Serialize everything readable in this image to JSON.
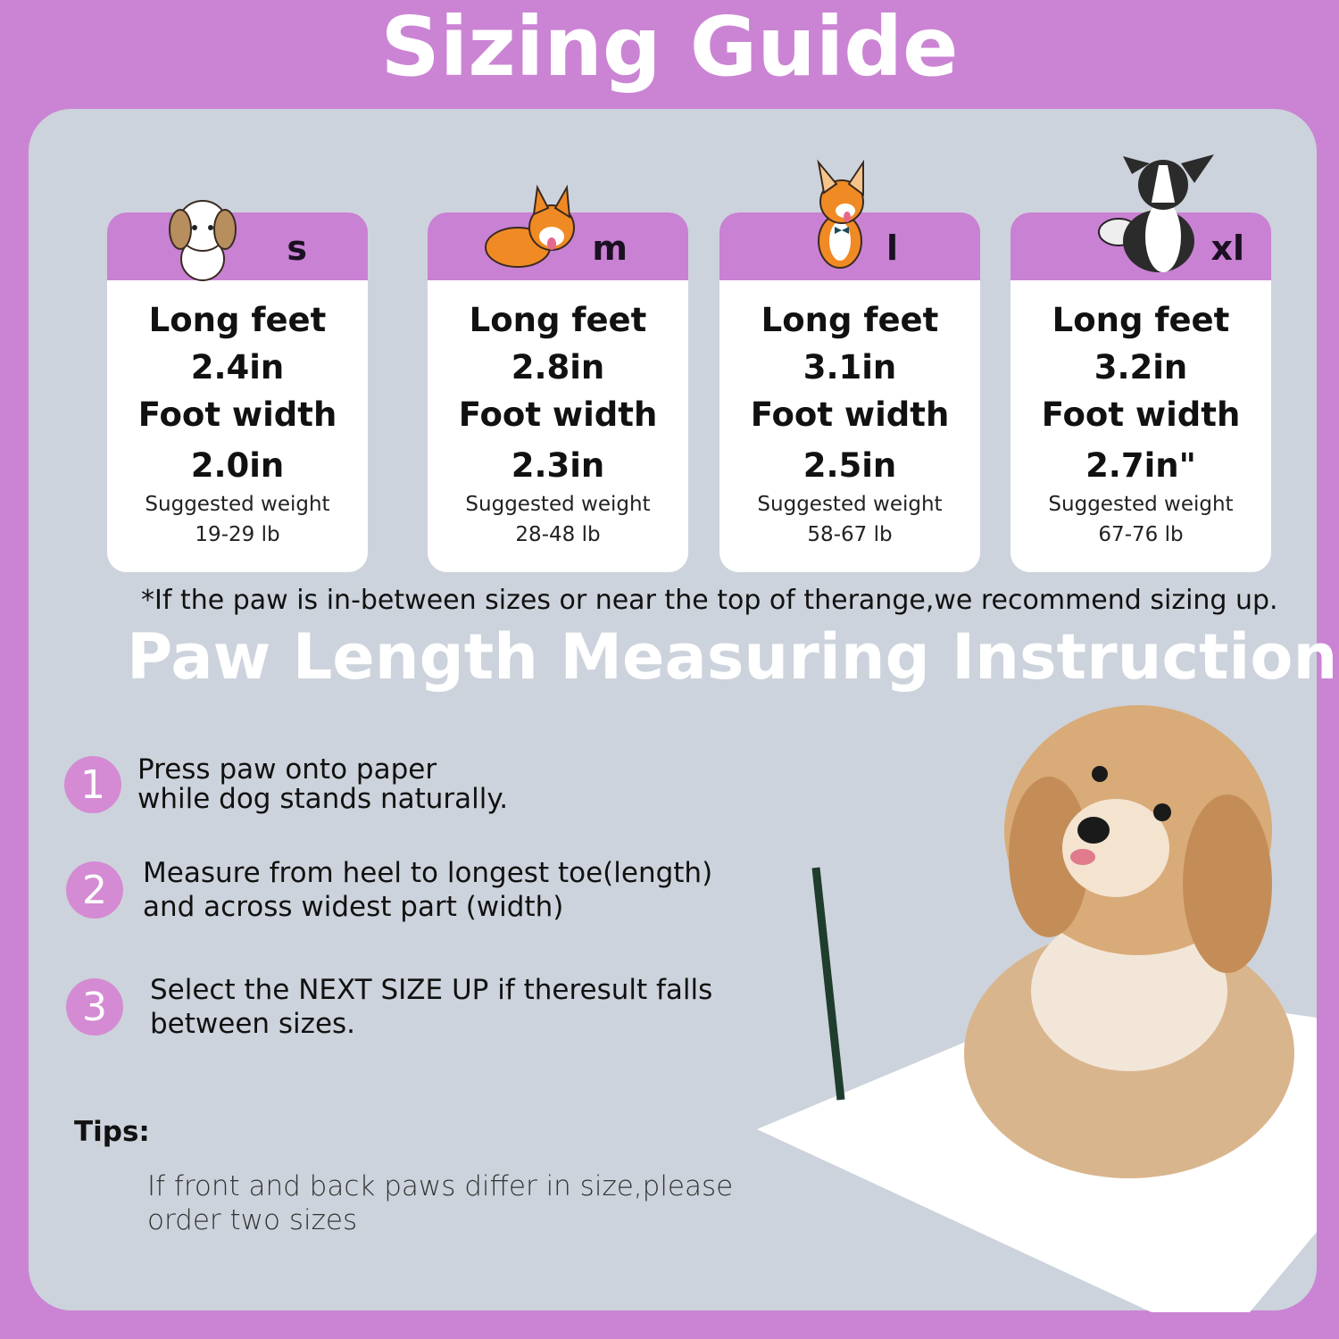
{
  "title": "Sizing Guide",
  "colors": {
    "background": "#cb84d4",
    "panel": "#cdd3dc",
    "card_header": "#c981d3",
    "step_circle": "#d48bd3"
  },
  "sizes": [
    {
      "label": "s",
      "length_label": "Long feet",
      "length": "2.4in",
      "width_label": "Foot width",
      "width": "2.0in",
      "weight_label": "Suggested weight",
      "weight": "19-29 lb",
      "icon": "shih-tzu-icon"
    },
    {
      "label": "m",
      "length_label": "Long feet",
      "length": "2.8in",
      "width_label": "Foot width",
      "width": "2.3in",
      "weight_label": "Suggested weight",
      "weight": "28-48 lb",
      "icon": "corgi-icon"
    },
    {
      "label": "l",
      "length_label": "Long feet",
      "length": "3.1in",
      "width_label": "Foot width",
      "width": "2.5in",
      "weight_label": "Suggested weight",
      "weight": "58-67 lb",
      "icon": "shiba-icon"
    },
    {
      "label": "xl",
      "length_label": "Long feet",
      "length": "3.2in",
      "width_label": "Foot width",
      "width": "2.7in\"",
      "weight_label": "Suggested weight",
      "weight": "67-76 lb",
      "icon": "border-collie-icon"
    }
  ],
  "note": "*If the paw is in-between sizes or near the top of therange,we recommend sizing up.",
  "subtitle": "Paw Length Measuring Instructions",
  "steps": [
    {
      "num": "1",
      "line1": "Press paw onto paper",
      "line2": "while dog stands naturally."
    },
    {
      "num": "2",
      "line1": "Measure from heel to longest toe(length)",
      "line2": "and across widest part (width)"
    },
    {
      "num": "3",
      "line1": "Select the NEXT SIZE UP if theresult falls",
      "line2": "between sizes."
    }
  ],
  "tips": {
    "label": "Tips:",
    "line1": "If front and back paws differ in size,please",
    "line2": "order two sizes"
  }
}
